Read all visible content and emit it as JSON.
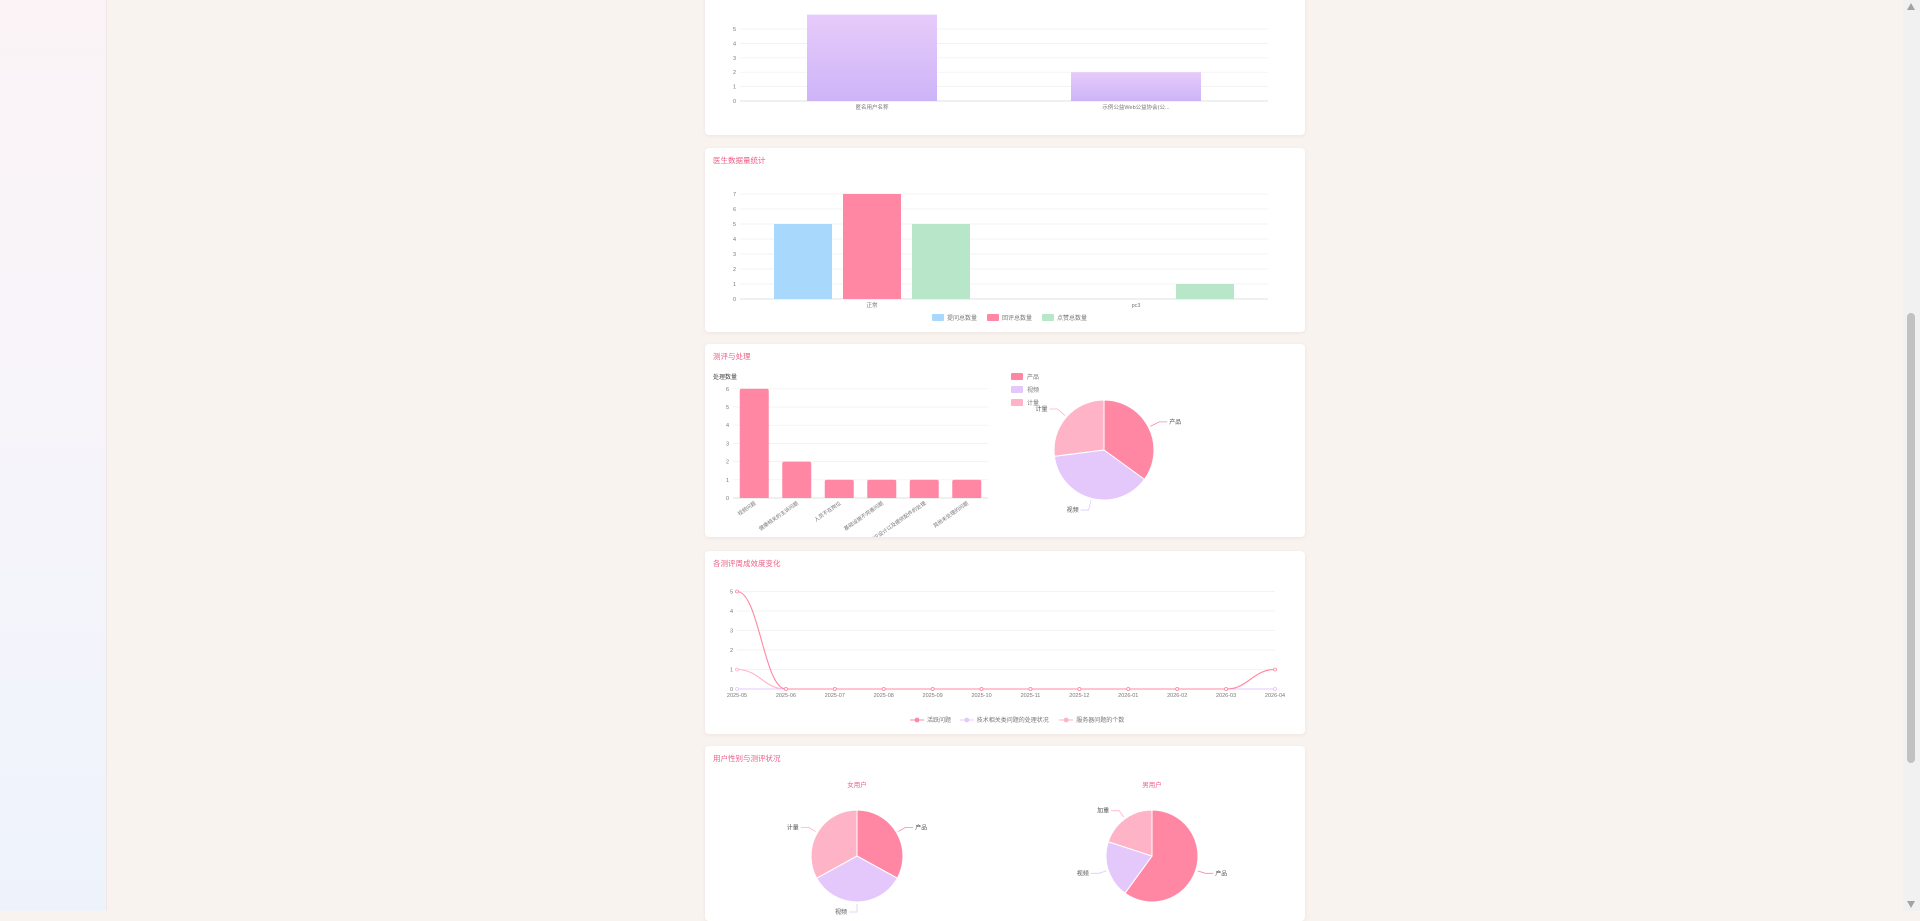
{
  "colors": {
    "pink": "#ff87a3",
    "lavender": "#e4c8fb",
    "lightpink": "#ffb3c6",
    "blue": "#a8d8fb",
    "green": "#b7e7c8",
    "purple_top": "#e7cbfb",
    "purple_bottom": "#cdb4f7",
    "title": "#ec5e86"
  },
  "chart_data": [
    {
      "type": "bar",
      "title": "",
      "categories": [
        "匿名用户名称",
        "示例公益Web公益协会(公..."
      ],
      "values": [
        6,
        2
      ],
      "yticks": [
        "0",
        "1",
        "2",
        "3",
        "4",
        "5"
      ]
    },
    {
      "type": "bar",
      "title": "医生数据量统计",
      "categories": [
        "正常",
        "pc3"
      ],
      "yticks": [
        "0",
        "1",
        "2",
        "3",
        "4",
        "5",
        "6",
        "7"
      ],
      "series": [
        {
          "name": "提问总数量",
          "color": "#a8d8fb",
          "values": [
            5,
            0
          ]
        },
        {
          "name": "回评总数量",
          "color": "#ff87a3",
          "values": [
            7,
            0
          ]
        },
        {
          "name": "点赞总数量",
          "color": "#b7e7c8",
          "values": [
            5,
            1
          ]
        }
      ]
    },
    {
      "type": "bar",
      "title": "测评与处理",
      "ylabel": "处理数量",
      "categories": [
        "视频问题",
        "健康相关的主诉问题",
        "人员不在岗位",
        "基础设施不完善问题",
        "相应设计以及提供配件的处理",
        "其他未处理的问题"
      ],
      "values": [
        6,
        2,
        1,
        1,
        1,
        1
      ],
      "yticks": [
        "0",
        "1",
        "2",
        "3",
        "4",
        "5",
        "6"
      ]
    },
    {
      "type": "pie",
      "labels": [
        "产品",
        "视频",
        "计量"
      ],
      "values": [
        35,
        38,
        27
      ],
      "legend": [
        "产品",
        "视频",
        "计量"
      ]
    },
    {
      "type": "line",
      "title": "各测评周成效度变化",
      "x": [
        "2025-05",
        "2025-06",
        "2025-07",
        "2025-08",
        "2025-09",
        "2025-10",
        "2025-11",
        "2025-12",
        "2026-01",
        "2026-02",
        "2026-03",
        "2026-04"
      ],
      "yticks": [
        "0",
        "1",
        "2",
        "3",
        "4",
        "5"
      ],
      "series": [
        {
          "name": "活跃问题",
          "color": "#ff87a3",
          "values": [
            5,
            0,
            0,
            0,
            0,
            0,
            0,
            0,
            0,
            0,
            0,
            1
          ]
        },
        {
          "name": "技术相关类问题的处理状况",
          "color": "#e4c8fb",
          "values": [
            0,
            0,
            0,
            0,
            0,
            0,
            0,
            0,
            0,
            0,
            0,
            0
          ]
        },
        {
          "name": "服务器问题的个数",
          "color": "#ffb3c6",
          "values": [
            1,
            0,
            0,
            0,
            0,
            0,
            0,
            0,
            0,
            0,
            0,
            0
          ]
        }
      ]
    },
    {
      "type": "pie",
      "title": "女用户",
      "labels": [
        "产品",
        "视频",
        "计量"
      ],
      "values": [
        33,
        34,
        33
      ]
    },
    {
      "type": "pie",
      "title": "男用户",
      "labels": [
        "产品",
        "视频",
        "加重"
      ],
      "values": [
        60,
        20,
        20
      ]
    }
  ],
  "sections": {
    "doctor_stats_title": "医生数据量统计",
    "evaluation_title": "测评与处理",
    "weekly_change_title": "各测评周成效度变化",
    "gender_title": "用户性别与测评状况",
    "female_label": "女用户",
    "male_label": "男用户"
  }
}
